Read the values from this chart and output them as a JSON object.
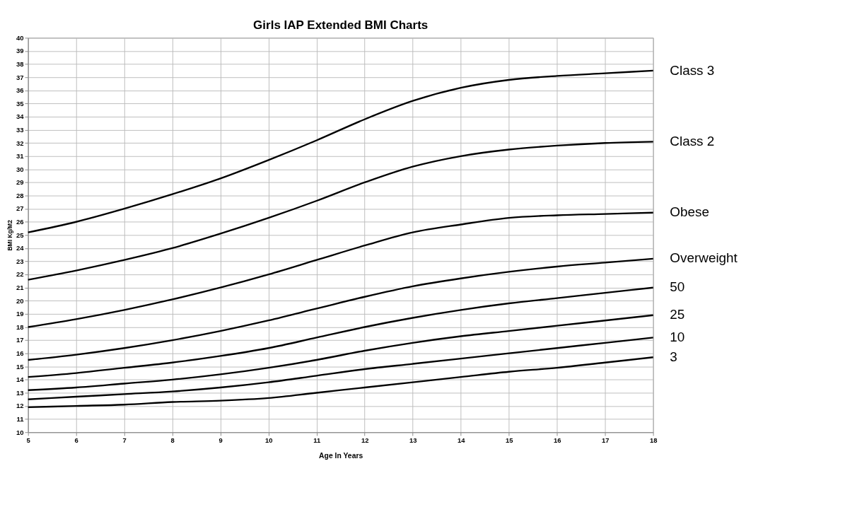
{
  "chart_data": {
    "type": "line",
    "title": "Girls IAP Extended BMI Charts",
    "xlabel": "Age In Years",
    "ylabel": "BMI Kg/M2",
    "x": [
      5,
      6,
      7,
      8,
      9,
      10,
      11,
      12,
      13,
      14,
      15,
      16,
      17,
      18
    ],
    "series": [
      {
        "name": "Class 3",
        "color": "#000000",
        "values": [
          25.2,
          26.0,
          27.0,
          28.1,
          29.3,
          30.7,
          32.2,
          33.8,
          35.2,
          36.2,
          36.8,
          37.1,
          37.3,
          37.5
        ]
      },
      {
        "name": "Class 2",
        "color": "#000000",
        "values": [
          21.6,
          22.3,
          23.1,
          24.0,
          25.1,
          26.3,
          27.6,
          29.0,
          30.2,
          31.0,
          31.5,
          31.8,
          32.0,
          32.1
        ]
      },
      {
        "name": "Obese",
        "color": "#000000",
        "values": [
          18.0,
          18.6,
          19.3,
          20.1,
          21.0,
          22.0,
          23.1,
          24.2,
          25.2,
          25.8,
          26.3,
          26.5,
          26.6,
          26.7
        ]
      },
      {
        "name": "Overweight",
        "color": "#000000",
        "values": [
          15.5,
          15.9,
          16.4,
          17.0,
          17.7,
          18.5,
          19.4,
          20.3,
          21.1,
          21.7,
          22.2,
          22.6,
          22.9,
          23.2
        ]
      },
      {
        "name": "50",
        "color": "#000000",
        "values": [
          14.2,
          14.5,
          14.9,
          15.3,
          15.8,
          16.4,
          17.2,
          18.0,
          18.7,
          19.3,
          19.8,
          20.2,
          20.6,
          21.0
        ]
      },
      {
        "name": "25",
        "color": "#000000",
        "values": [
          13.2,
          13.4,
          13.7,
          14.0,
          14.4,
          14.9,
          15.5,
          16.2,
          16.8,
          17.3,
          17.7,
          18.1,
          18.5,
          18.9
        ]
      },
      {
        "name": "10",
        "color": "#000000",
        "values": [
          12.5,
          12.7,
          12.9,
          13.1,
          13.4,
          13.8,
          14.3,
          14.8,
          15.2,
          15.6,
          16.0,
          16.4,
          16.8,
          17.2
        ]
      },
      {
        "name": "3",
        "color": "#000000",
        "values": [
          11.9,
          12.0,
          12.1,
          12.3,
          12.4,
          12.6,
          13.0,
          13.4,
          13.8,
          14.2,
          14.6,
          14.9,
          15.3,
          15.7
        ]
      }
    ],
    "xlim": [
      5,
      18
    ],
    "xticks": [
      5,
      6,
      7,
      8,
      9,
      10,
      11,
      12,
      13,
      14,
      15,
      16,
      17,
      18
    ],
    "ylim": [
      10,
      40
    ],
    "yticks": [
      10,
      11,
      12,
      13,
      14,
      15,
      16,
      17,
      18,
      19,
      20,
      21,
      22,
      23,
      24,
      25,
      26,
      27,
      28,
      29,
      30,
      31,
      32,
      33,
      34,
      35,
      36,
      37,
      38,
      39,
      40
    ],
    "grid": true,
    "legend": false,
    "marker": "none",
    "line_style": "solid"
  }
}
